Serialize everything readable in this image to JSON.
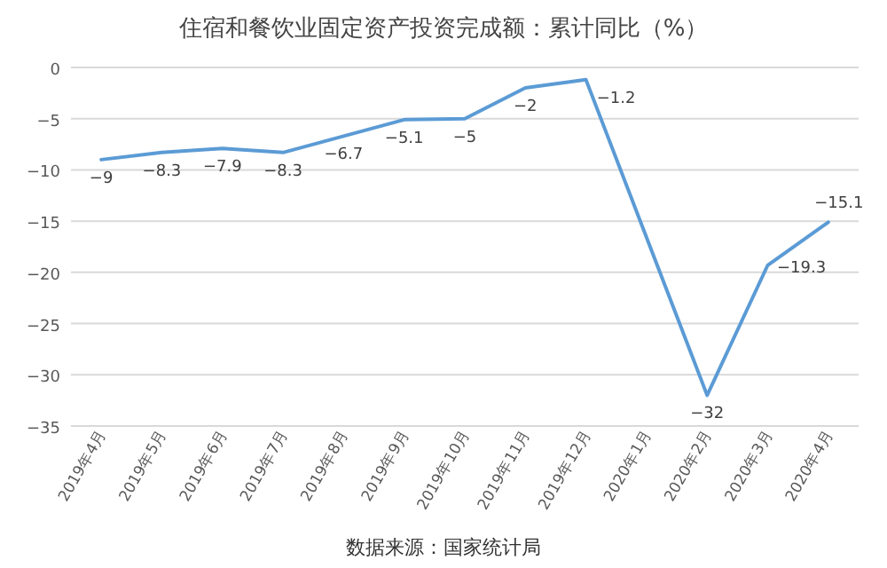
{
  "chart_data": {
    "type": "line",
    "title": "住宿和餐饮业固定资产投资完成额：累计同比（%）",
    "categories": [
      "2019年4月",
      "2019年5月",
      "2019年6月",
      "2019年7月",
      "2019年8月",
      "2019年9月",
      "2019年10月",
      "2019年11月",
      "2019年12月",
      "2020年1月",
      "2020年2月",
      "2020年3月",
      "2020年4月"
    ],
    "series": [
      {
        "color": "#5b9bd5",
        "values": [
          -9,
          -8.3,
          -7.9,
          -8.3,
          -6.7,
          -5.1,
          -5,
          -2,
          -1.2,
          null,
          -32,
          -19.3,
          -15.1
        ]
      }
    ],
    "ylim": [
      -35,
      0
    ],
    "yticks": [
      0,
      -5,
      -10,
      -15,
      -20,
      -25,
      -30,
      -35
    ],
    "grid": "y",
    "data_labels": true,
    "marker": "none",
    "line_style": "solid",
    "annotations": [
      "数据来源：国家统计局"
    ]
  }
}
